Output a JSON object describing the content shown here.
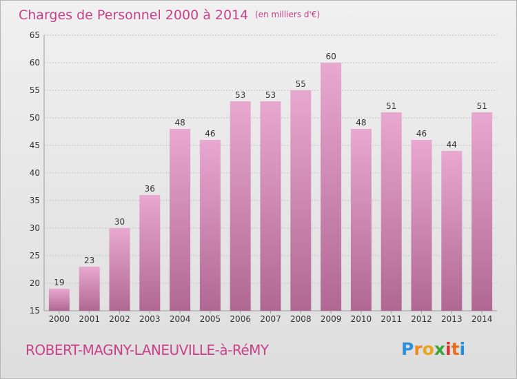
{
  "header": {
    "title": "Charges de Personnel 2000 à 2014",
    "unit": "(en milliers d'€)"
  },
  "footer": {
    "place": "ROBERT-MAGNY-LANEUVILLE-à-RéMY",
    "logo": [
      "P",
      "r",
      "o",
      "x",
      "i",
      "t",
      "i"
    ],
    "logo_colors": [
      "#2f8fd8",
      "#f08a1c",
      "#e8a51e",
      "#3aa63a",
      "#d9322a",
      "#e86b1e",
      "#1e8fd8"
    ]
  },
  "colors": {
    "bar_top": "#e8a8cf",
    "bar_bottom": "#b06892",
    "title": "#c8418a"
  },
  "chart_data": {
    "type": "bar",
    "categories": [
      "2000",
      "2001",
      "2002",
      "2003",
      "2004",
      "2005",
      "2006",
      "2007",
      "2008",
      "2009",
      "2010",
      "2011",
      "2012",
      "2013",
      "2014"
    ],
    "values": [
      19,
      23,
      30,
      36,
      48,
      46,
      53,
      53,
      55,
      60,
      48,
      51,
      46,
      44,
      51
    ],
    "ylim": [
      15,
      65
    ],
    "yticks": [
      15,
      20,
      25,
      30,
      35,
      40,
      45,
      50,
      55,
      60,
      65
    ],
    "grid": true,
    "legend": "none"
  }
}
